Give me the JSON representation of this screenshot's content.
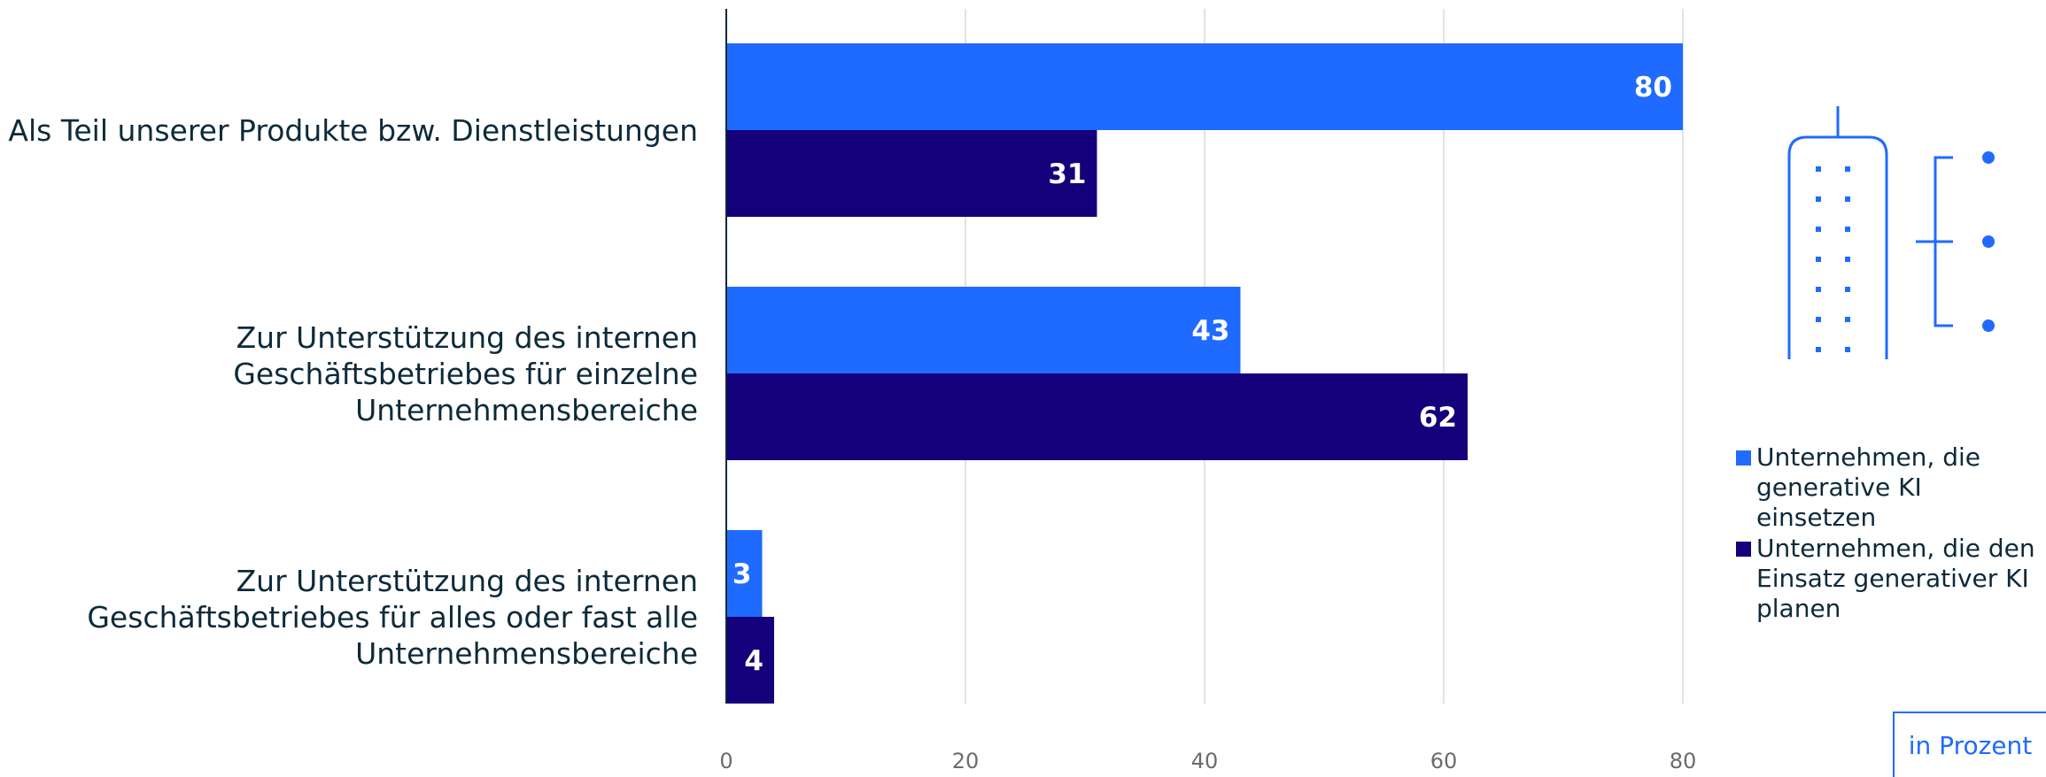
{
  "chart_data": {
    "type": "bar",
    "orientation": "horizontal",
    "categories": [
      "Als Teil unserer Produkte bzw. Dienstleistungen",
      "Zur Unterstützung des internen\nGeschäftsbetriebes für einzelne\nUnternehmensbereiche",
      "Zur Unterstützung des internen\nGeschäftsbetriebes für alles oder fast alle\nUnternehmensbereiche"
    ],
    "series": [
      {
        "name": "Unternehmen, die generative KI einsetzen",
        "values": [
          80,
          43,
          3
        ],
        "color": "#1f6bff"
      },
      {
        "name": "Unternehmen, die den Einsatz generativer KI planen",
        "values": [
          31,
          62,
          4
        ],
        "color": "#14007a"
      }
    ],
    "x_ticks": [
      0,
      20,
      40,
      60,
      80
    ],
    "xlim": [
      0,
      80
    ],
    "grid": true,
    "legend_position": "right",
    "unit_label": "in Prozent"
  },
  "icon": "building-network-icon"
}
